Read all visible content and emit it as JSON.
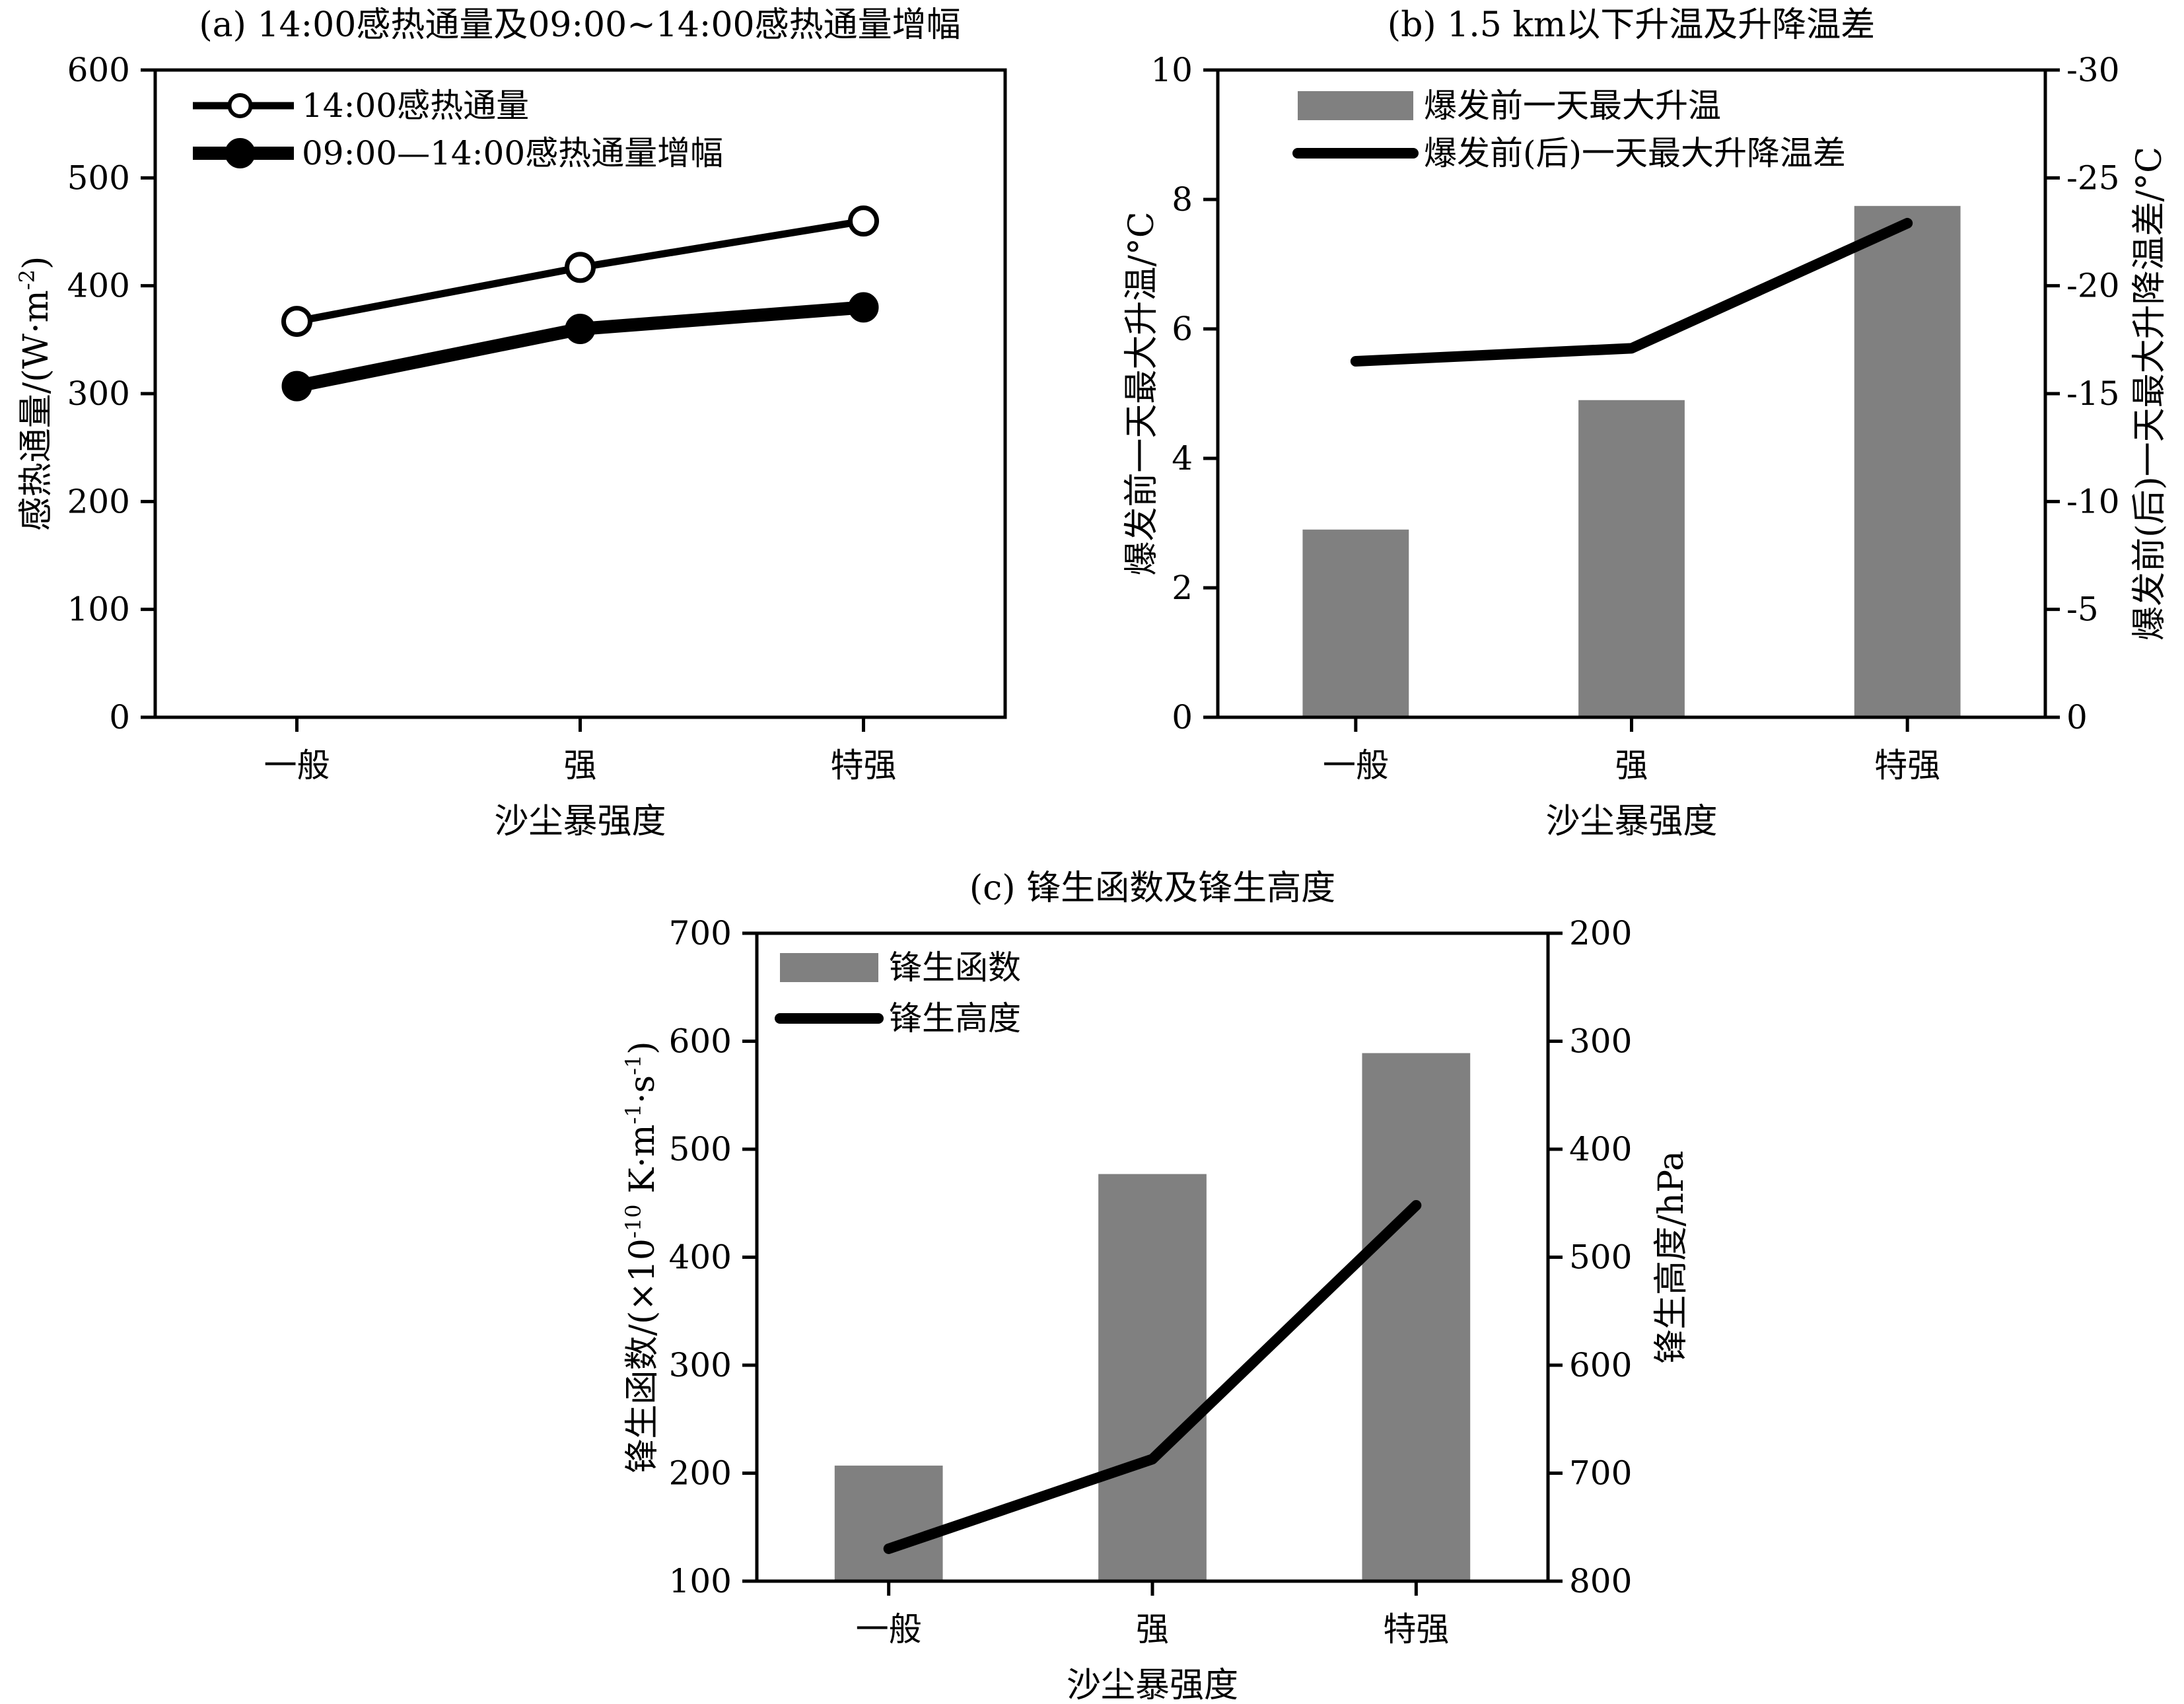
{
  "chart_data": [
    {
      "id": "a",
      "type": "line",
      "title": "(a) 14:00感热通量及09:00~14:00感热通量增幅",
      "xlabel": "沙尘暴强度",
      "ylabel": "感热通量/(W·m-2)",
      "ylabel_main": "感热通量/(W·m",
      "ylabel_sup": "-2",
      "ylabel_end": ")",
      "categories": [
        "一般",
        "强",
        "特强"
      ],
      "ylim": [
        0,
        600
      ],
      "yticks": [
        0,
        100,
        200,
        300,
        400,
        500,
        600
      ],
      "legend": "top-left",
      "series": [
        {
          "name": "14:00感热通量",
          "values": [
            367,
            417,
            460
          ],
          "marker": "open-circle",
          "color": "#000000"
        },
        {
          "name": "09:00—14:00感热通量增幅",
          "values": [
            307,
            360,
            380
          ],
          "marker": "filled-circle",
          "color": "#000000"
        }
      ]
    },
    {
      "id": "b",
      "type": "bar",
      "title": "(b) 1.5 km以下升温及升降温差",
      "xlabel": "沙尘暴强度",
      "ylabel": "爆发前一天最大升温/°C",
      "ylabel_right": "爆发前(后)一天最大升降温差/°C",
      "categories": [
        "一般",
        "强",
        "特强"
      ],
      "ylim": [
        0,
        10
      ],
      "yticks": [
        0,
        2,
        4,
        6,
        8,
        10
      ],
      "ylim_right": [
        0,
        -30
      ],
      "yticks_right": [
        0,
        -5,
        -10,
        -15,
        -20,
        -25,
        -30
      ],
      "legend": "top-left",
      "series": [
        {
          "name": "爆发前一天最大升温",
          "type": "bar",
          "axis": "left",
          "values": [
            2.9,
            4.9,
            7.9
          ],
          "color": "#808080"
        },
        {
          "name": "爆发前(后)一天最大升降温差",
          "type": "line",
          "axis": "right",
          "values": [
            -16.5,
            -17.1,
            -22.9
          ],
          "color": "#000000"
        }
      ]
    },
    {
      "id": "c",
      "type": "bar",
      "title": "(c) 锋生函数及锋生高度",
      "xlabel": "沙尘暴强度",
      "ylabel": "锋生函数/(×10-10 K·m-1·s-1)",
      "ylabel_parts": [
        "锋生函数/(×10",
        "-10",
        " K·m",
        "-1",
        "·s",
        "-1",
        ")"
      ],
      "ylabel_right": "锋生高度/hPa",
      "categories": [
        "一般",
        "强",
        "特强"
      ],
      "ylim": [
        100,
        700
      ],
      "yticks": [
        100,
        200,
        300,
        400,
        500,
        600,
        700
      ],
      "ylim_right": [
        800,
        200
      ],
      "yticks_right": [
        800,
        700,
        600,
        500,
        400,
        300,
        200
      ],
      "legend": "top-left",
      "series": [
        {
          "name": "锋生函数",
          "type": "bar",
          "axis": "left",
          "values": [
            207,
            477,
            589
          ],
          "color": "#808080"
        },
        {
          "name": "锋生高度",
          "type": "line",
          "axis": "right",
          "values": [
            770,
            687,
            452
          ],
          "color": "#000000"
        }
      ]
    }
  ]
}
